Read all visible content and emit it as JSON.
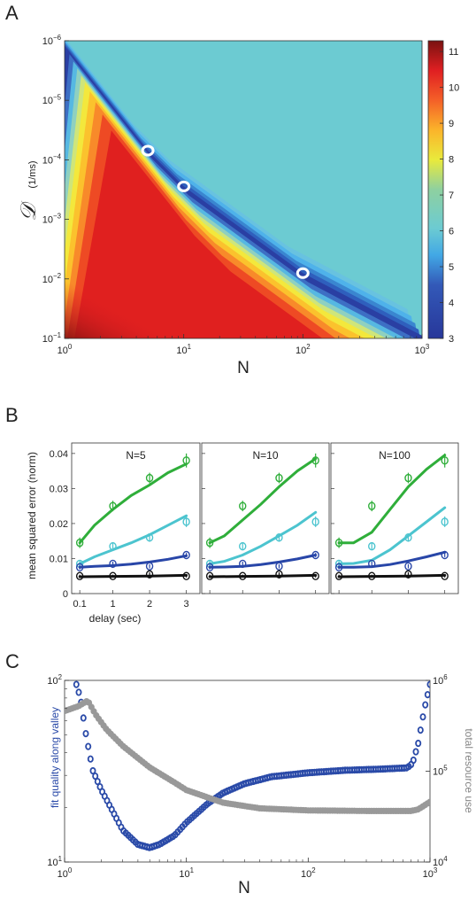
{
  "panel_labels": [
    "A",
    "B",
    "C"
  ],
  "colors": {
    "green": "#2fae3a",
    "cyan": "#4cc4cf",
    "blue": "#2846a8",
    "black": "#111111",
    "valley_blue": "#2a4aa8",
    "grey": "#999999",
    "heat_plateau": "#6ccbd2"
  },
  "chart_data": [
    {
      "type": "heatmap",
      "panel": "A",
      "xlabel": "N",
      "ylabel": "𝒟",
      "ylabel_unit": "(1/ms)",
      "x_scale": "log",
      "y_scale": "log",
      "y_reversed": true,
      "xlim": [
        1,
        1000
      ],
      "ylim": [
        1e-06,
        0.1
      ],
      "x_ticks": [
        {
          "base": "10",
          "exp": "0"
        },
        {
          "base": "10",
          "exp": "1"
        },
        {
          "base": "10",
          "exp": "2"
        },
        {
          "base": "10",
          "exp": "3"
        }
      ],
      "y_ticks": [
        {
          "base": "10",
          "exp": "−6"
        },
        {
          "base": "10",
          "exp": "−5"
        },
        {
          "base": "10",
          "exp": "−4"
        },
        {
          "base": "10",
          "exp": "−3"
        },
        {
          "base": "10",
          "exp": "−2"
        },
        {
          "base": "10",
          "exp": "−1"
        }
      ],
      "colorbar": {
        "min": 3,
        "max": 11.3,
        "ticks": [
          "3",
          "4",
          "5",
          "6",
          "7",
          "8",
          "9",
          "10",
          "11"
        ]
      },
      "valley": [
        [
          1,
          1.2e-06
        ],
        [
          5,
          7e-05
        ],
        [
          10,
          0.00028
        ],
        [
          100,
          0.008
        ],
        [
          1000,
          0.09
        ]
      ],
      "marked_points": [
        [
          5,
          7e-05
        ],
        [
          10,
          0.00028
        ],
        [
          100,
          0.008
        ]
      ],
      "plateau_value": 5.8
    },
    {
      "type": "line",
      "panel": "B",
      "ylabel": "mean squared error (norm)",
      "xlabel": "delay (sec)",
      "x_ticks": [
        "0.1",
        "1",
        "2",
        "3"
      ],
      "y_ticks": [
        "0",
        "0.01",
        "0.02",
        "0.03",
        "0.04"
      ],
      "ylim": [
        0,
        0.043
      ],
      "xlim": [
        0,
        3.25
      ],
      "x": [
        0.1,
        1,
        2,
        3
      ],
      "subplots": [
        {
          "title": "N=5",
          "series": [
            {
              "color": "green",
              "points": [
                0.0145,
                0.025,
                0.033,
                0.038
              ],
              "err": [
                0.0015,
                0.0015,
                0.0015,
                0.002
              ],
              "fit": [
                [
                  0.1,
                  0.0145
                ],
                [
                  0.5,
                  0.0195
                ],
                [
                  1,
                  0.024
                ],
                [
                  1.5,
                  0.028
                ],
                [
                  2,
                  0.031
                ],
                [
                  2.5,
                  0.0345
                ],
                [
                  3,
                  0.037
                ]
              ]
            },
            {
              "color": "cyan",
              "points": [
                0.0085,
                0.0135,
                0.016,
                0.0205
              ],
              "err": [
                0.001,
                0.001,
                0.0012,
                0.0015
              ],
              "fit": [
                [
                  0.1,
                  0.0085
                ],
                [
                  0.5,
                  0.0105
                ],
                [
                  1,
                  0.0125
                ],
                [
                  1.5,
                  0.0145
                ],
                [
                  2,
                  0.0168
                ],
                [
                  2.5,
                  0.0195
                ],
                [
                  3,
                  0.0222
                ]
              ]
            },
            {
              "color": "blue",
              "points": [
                0.0075,
                0.0085,
                0.0078,
                0.011
              ],
              "err": [
                0.0006,
                0.0006,
                0.0006,
                0.0006
              ],
              "fit": [
                [
                  0.1,
                  0.0075
                ],
                [
                  0.5,
                  0.0078
                ],
                [
                  1,
                  0.008
                ],
                [
                  1.5,
                  0.0084
                ],
                [
                  2,
                  0.009
                ],
                [
                  2.5,
                  0.0098
                ],
                [
                  3,
                  0.0108
                ]
              ]
            },
            {
              "color": "black",
              "points": [
                0.005,
                0.005,
                0.0055,
                0.005
              ],
              "err": [
                0.0004,
                0.0004,
                0.0006,
                0.0004
              ],
              "fit": [
                [
                  0.1,
                  0.0048
                ],
                [
                  1,
                  0.0049
                ],
                [
                  2,
                  0.005
                ],
                [
                  3,
                  0.0052
                ]
              ]
            }
          ]
        },
        {
          "title": "N=10",
          "series": [
            {
              "color": "green",
              "points": [
                0.0145,
                0.025,
                0.033,
                0.038
              ],
              "err": [
                0.0015,
                0.0015,
                0.0015,
                0.002
              ],
              "fit": [
                [
                  0.1,
                  0.0145
                ],
                [
                  0.5,
                  0.0165
                ],
                [
                  1,
                  0.021
                ],
                [
                  1.5,
                  0.0255
                ],
                [
                  2,
                  0.0305
                ],
                [
                  2.5,
                  0.035
                ],
                [
                  3,
                  0.0385
                ]
              ]
            },
            {
              "color": "cyan",
              "points": [
                0.0085,
                0.0135,
                0.016,
                0.0205
              ],
              "err": [
                0.001,
                0.001,
                0.0012,
                0.0015
              ],
              "fit": [
                [
                  0.1,
                  0.0085
                ],
                [
                  0.5,
                  0.0092
                ],
                [
                  1,
                  0.011
                ],
                [
                  1.5,
                  0.0135
                ],
                [
                  2,
                  0.0165
                ],
                [
                  2.5,
                  0.0195
                ],
                [
                  3,
                  0.0232
                ]
              ]
            },
            {
              "color": "blue",
              "points": [
                0.0075,
                0.0085,
                0.0078,
                0.011
              ],
              "err": [
                0.0006,
                0.0006,
                0.0006,
                0.0006
              ],
              "fit": [
                [
                  0.1,
                  0.0075
                ],
                [
                  0.5,
                  0.0076
                ],
                [
                  1,
                  0.0078
                ],
                [
                  1.5,
                  0.0083
                ],
                [
                  2,
                  0.009
                ],
                [
                  2.5,
                  0.0099
                ],
                [
                  3,
                  0.011
                ]
              ]
            },
            {
              "color": "black",
              "points": [
                0.005,
                0.005,
                0.0055,
                0.005
              ],
              "err": [
                0.0004,
                0.0004,
                0.0006,
                0.0004
              ],
              "fit": [
                [
                  0.1,
                  0.0048
                ],
                [
                  1,
                  0.0049
                ],
                [
                  2,
                  0.005
                ],
                [
                  3,
                  0.0052
                ]
              ]
            }
          ]
        },
        {
          "title": "N=100",
          "series": [
            {
              "color": "green",
              "points": [
                0.0145,
                0.025,
                0.033,
                0.038
              ],
              "err": [
                0.0015,
                0.0015,
                0.0015,
                0.002
              ],
              "fit": [
                [
                  0.1,
                  0.0145
                ],
                [
                  0.5,
                  0.0145
                ],
                [
                  1,
                  0.0175
                ],
                [
                  1.5,
                  0.024
                ],
                [
                  2,
                  0.0305
                ],
                [
                  2.5,
                  0.0355
                ],
                [
                  3,
                  0.0395
                ]
              ]
            },
            {
              "color": "cyan",
              "points": [
                0.0085,
                0.0135,
                0.016,
                0.0205
              ],
              "err": [
                0.001,
                0.001,
                0.0012,
                0.0015
              ],
              "fit": [
                [
                  0.1,
                  0.0085
                ],
                [
                  0.5,
                  0.0086
                ],
                [
                  1,
                  0.0095
                ],
                [
                  1.5,
                  0.0125
                ],
                [
                  2,
                  0.0165
                ],
                [
                  2.5,
                  0.0205
                ],
                [
                  3,
                  0.0245
                ]
              ]
            },
            {
              "color": "blue",
              "points": [
                0.0075,
                0.0085,
                0.0078,
                0.011
              ],
              "err": [
                0.0006,
                0.0006,
                0.0006,
                0.0006
              ],
              "fit": [
                [
                  0.1,
                  0.0075
                ],
                [
                  0.5,
                  0.0075
                ],
                [
                  1,
                  0.0077
                ],
                [
                  1.5,
                  0.0083
                ],
                [
                  2,
                  0.0093
                ],
                [
                  2.5,
                  0.0105
                ],
                [
                  3,
                  0.0118
                ]
              ]
            },
            {
              "color": "black",
              "points": [
                0.005,
                0.005,
                0.0055,
                0.005
              ],
              "err": [
                0.0004,
                0.0004,
                0.0006,
                0.0004
              ],
              "fit": [
                [
                  0.1,
                  0.0048
                ],
                [
                  1,
                  0.0049
                ],
                [
                  2,
                  0.005
                ],
                [
                  3,
                  0.0052
                ]
              ]
            }
          ]
        }
      ]
    },
    {
      "type": "scatter",
      "panel": "C",
      "xlabel": "N",
      "ylabel_left": "fit quality along valley",
      "ylabel_right": "total resource use",
      "x_scale": "log",
      "y_scale_left": "log",
      "y_scale_right": "log",
      "xlim": [
        1,
        1000
      ],
      "ylim_left": [
        10,
        100
      ],
      "ylim_right": [
        10000,
        1000000
      ],
      "x_ticks": [
        {
          "base": "10",
          "exp": "0"
        },
        {
          "base": "10",
          "exp": "1"
        },
        {
          "base": "10",
          "exp": "2"
        },
        {
          "base": "10",
          "exp": "3"
        }
      ],
      "y_ticks_left": [
        {
          "base": "10",
          "exp": "1"
        },
        {
          "base": "10",
          "exp": "2"
        }
      ],
      "y_ticks_right": [
        {
          "base": "10",
          "exp": "4"
        },
        {
          "base": "10",
          "exp": "5"
        },
        {
          "base": "10",
          "exp": "6"
        }
      ],
      "series": [
        {
          "axis": "left",
          "color": "valley_blue",
          "knots": [
            [
              1.25,
              95
            ],
            [
              1.35,
              80
            ],
            [
              1.5,
              50
            ],
            [
              1.7,
              32
            ],
            [
              2,
              25
            ],
            [
              3,
              15
            ],
            [
              4,
              12.5
            ],
            [
              5,
              12
            ],
            [
              6,
              12.5
            ],
            [
              8,
              14
            ],
            [
              10,
              16.5
            ],
            [
              15,
              21
            ],
            [
              20,
              24
            ],
            [
              30,
              27
            ],
            [
              50,
              29.5
            ],
            [
              100,
              31
            ],
            [
              200,
              32
            ],
            [
              400,
              32.5
            ],
            [
              650,
              33
            ],
            [
              720,
              35
            ],
            [
              800,
              45
            ],
            [
              900,
              70
            ],
            [
              1000,
              95
            ]
          ]
        },
        {
          "axis": "right",
          "color": "grey",
          "knots": [
            [
              1,
              460000
            ],
            [
              1.3,
              520000
            ],
            [
              1.55,
              600000
            ],
            [
              1.8,
              420000
            ],
            [
              2.2,
              290000
            ],
            [
              3,
              190000
            ],
            [
              5,
              110000
            ],
            [
              8,
              75000
            ],
            [
              10,
              62000
            ],
            [
              20,
              45000
            ],
            [
              40,
              39000
            ],
            [
              100,
              37000
            ],
            [
              300,
              36500
            ],
            [
              700,
              36500
            ],
            [
              800,
              38000
            ],
            [
              900,
              42000
            ],
            [
              1000,
              46000
            ]
          ]
        }
      ]
    }
  ]
}
